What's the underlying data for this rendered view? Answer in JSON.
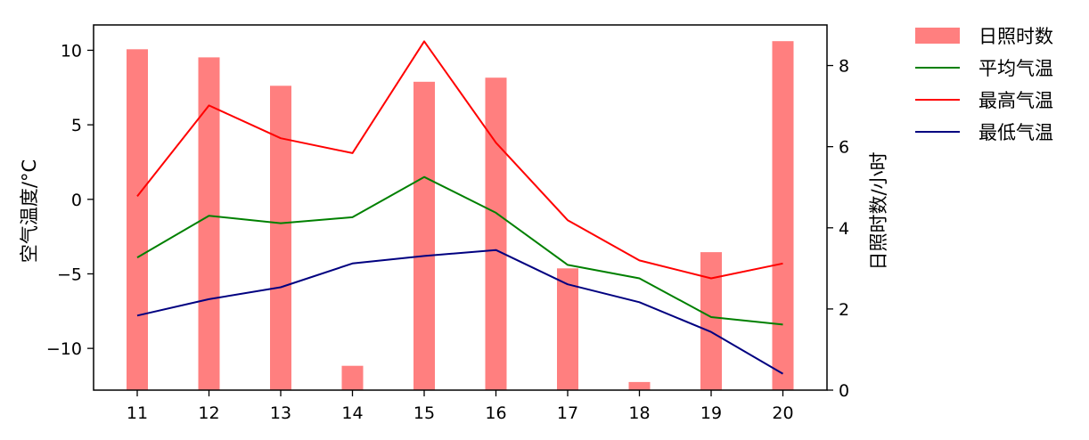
{
  "chart_data": {
    "type": "bar",
    "categories": [
      "11",
      "12",
      "13",
      "14",
      "15",
      "16",
      "17",
      "18",
      "19",
      "20"
    ],
    "left_axis": {
      "label": "空气温度/°C",
      "ylim": [
        -12.8,
        11.7
      ],
      "ticks": [
        10,
        5,
        0,
        -5,
        -10
      ],
      "tick_labels": [
        "10",
        "5",
        "0",
        "−5",
        "−10"
      ]
    },
    "right_axis": {
      "label": "日照时数/小时",
      "ylim": [
        0,
        9.0
      ],
      "ticks": [
        0,
        2,
        4,
        6,
        8
      ],
      "tick_labels": [
        "0",
        "2",
        "4",
        "6",
        "8"
      ]
    },
    "bar_series": {
      "name": "日照时数",
      "axis": "right",
      "color": "#ff7f7f",
      "values": [
        8.4,
        8.2,
        7.5,
        0.6,
        7.6,
        7.7,
        3.0,
        0.2,
        3.4,
        8.6
      ]
    },
    "line_series": [
      {
        "name": "平均气温",
        "axis": "left",
        "color": "#008000",
        "values": [
          -3.9,
          -1.1,
          -1.6,
          -1.2,
          1.5,
          -0.9,
          -4.4,
          -5.3,
          -7.9,
          -8.4
        ]
      },
      {
        "name": "最高气温",
        "axis": "left",
        "color": "#ff0000",
        "values": [
          0.2,
          6.3,
          4.1,
          3.1,
          10.6,
          3.8,
          -1.4,
          -4.1,
          -5.3,
          -4.3
        ]
      },
      {
        "name": "最低气温",
        "axis": "left",
        "color": "#000080",
        "values": [
          -7.8,
          -6.7,
          -5.9,
          -4.3,
          -3.8,
          -3.4,
          -5.7,
          -6.9,
          -8.9,
          -11.7
        ]
      }
    ],
    "legend": {
      "placement": "outside-top-right",
      "entries": [
        "日照时数",
        "平均气温",
        "最高气温",
        "最低气温"
      ]
    },
    "grid": false
  }
}
